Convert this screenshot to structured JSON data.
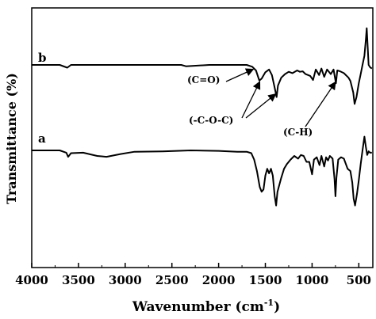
{
  "chart_data": {
    "type": "line",
    "xlabel": "Wavenumber (cm",
    "xlabel_sup": "-1",
    "xlabel_close": ")",
    "ylabel": "Transmittance (%)",
    "xlim": [
      4000,
      350
    ],
    "x_reversed": true,
    "xticks": [
      4000,
      3500,
      3000,
      2500,
      2000,
      1500,
      1000,
      500
    ],
    "yticks_labels": false,
    "series": [
      {
        "name": "b",
        "baseline": 0.0,
        "points": [
          [
            4000,
            0.0
          ],
          [
            3700,
            0.0
          ],
          [
            3620,
            -0.06
          ],
          [
            3580,
            0.0
          ],
          [
            3300,
            0.0
          ],
          [
            3000,
            0.0
          ],
          [
            2700,
            0.0
          ],
          [
            2400,
            0.0
          ],
          [
            2350,
            -0.03
          ],
          [
            2100,
            0.0
          ],
          [
            1900,
            0.0
          ],
          [
            1700,
            0.0
          ],
          [
            1640,
            -0.04
          ],
          [
            1600,
            -0.12
          ],
          [
            1565,
            -0.34
          ],
          [
            1540,
            -0.3
          ],
          [
            1500,
            -0.16
          ],
          [
            1460,
            -0.1
          ],
          [
            1430,
            -0.22
          ],
          [
            1400,
            -0.5
          ],
          [
            1380,
            -0.7
          ],
          [
            1365,
            -0.45
          ],
          [
            1330,
            -0.28
          ],
          [
            1290,
            -0.2
          ],
          [
            1250,
            -0.15
          ],
          [
            1210,
            -0.18
          ],
          [
            1160,
            -0.12
          ],
          [
            1130,
            -0.15
          ],
          [
            1100,
            -0.14
          ],
          [
            1070,
            -0.2
          ],
          [
            1020,
            -0.24
          ],
          [
            990,
            -0.33
          ],
          [
            960,
            -0.1
          ],
          [
            925,
            -0.22
          ],
          [
            900,
            -0.08
          ],
          [
            870,
            -0.26
          ],
          [
            840,
            -0.1
          ],
          [
            800,
            -0.2
          ],
          [
            770,
            -0.1
          ],
          [
            745,
            -0.4
          ],
          [
            730,
            -0.12
          ],
          [
            700,
            -0.14
          ],
          [
            660,
            -0.18
          ],
          [
            610,
            -0.28
          ],
          [
            590,
            -0.35
          ],
          [
            560,
            -0.6
          ],
          [
            545,
            -0.85
          ],
          [
            525,
            -0.7
          ],
          [
            500,
            -0.4
          ],
          [
            480,
            -0.2
          ],
          [
            460,
            0.0
          ],
          [
            440,
            0.2
          ],
          [
            425,
            0.55
          ],
          [
            415,
            0.8
          ],
          [
            405,
            0.4
          ],
          [
            395,
            0.0
          ],
          [
            380,
            -0.05
          ],
          [
            360,
            -0.08
          ]
        ]
      },
      {
        "name": "a",
        "baseline": 0.0,
        "points": [
          [
            4000,
            0.0
          ],
          [
            3700,
            0.0
          ],
          [
            3630,
            -0.05
          ],
          [
            3610,
            -0.14
          ],
          [
            3580,
            -0.06
          ],
          [
            3450,
            -0.05
          ],
          [
            3300,
            -0.12
          ],
          [
            3200,
            -0.14
          ],
          [
            3050,
            -0.08
          ],
          [
            2900,
            -0.03
          ],
          [
            2600,
            -0.02
          ],
          [
            2300,
            0.0
          ],
          [
            2000,
            -0.01
          ],
          [
            1800,
            -0.03
          ],
          [
            1700,
            -0.03
          ],
          [
            1650,
            -0.06
          ],
          [
            1620,
            -0.2
          ],
          [
            1590,
            -0.45
          ],
          [
            1560,
            -0.8
          ],
          [
            1540,
            -0.9
          ],
          [
            1520,
            -0.85
          ],
          [
            1500,
            -0.55
          ],
          [
            1480,
            -0.4
          ],
          [
            1460,
            -0.5
          ],
          [
            1440,
            -0.4
          ],
          [
            1420,
            -0.55
          ],
          [
            1400,
            -1.0
          ],
          [
            1385,
            -1.2
          ],
          [
            1370,
            -0.9
          ],
          [
            1330,
            -0.6
          ],
          [
            1300,
            -0.4
          ],
          [
            1270,
            -0.3
          ],
          [
            1230,
            -0.2
          ],
          [
            1190,
            -0.12
          ],
          [
            1150,
            -0.18
          ],
          [
            1120,
            -0.1
          ],
          [
            1090,
            -0.12
          ],
          [
            1060,
            -0.25
          ],
          [
            1030,
            -0.25
          ],
          [
            1000,
            -0.52
          ],
          [
            980,
            -0.2
          ],
          [
            950,
            -0.15
          ],
          [
            920,
            -0.32
          ],
          [
            900,
            -0.12
          ],
          [
            870,
            -0.35
          ],
          [
            850,
            -0.15
          ],
          [
            830,
            -0.22
          ],
          [
            810,
            -0.12
          ],
          [
            780,
            -0.18
          ],
          [
            760,
            -0.62
          ],
          [
            750,
            -1.0
          ],
          [
            740,
            -0.6
          ],
          [
            720,
            -0.2
          ],
          [
            690,
            -0.15
          ],
          [
            660,
            -0.18
          ],
          [
            620,
            -0.4
          ],
          [
            590,
            -0.45
          ],
          [
            570,
            -0.7
          ],
          [
            555,
            -1.05
          ],
          [
            540,
            -1.2
          ],
          [
            520,
            -0.95
          ],
          [
            500,
            -0.65
          ],
          [
            480,
            -0.3
          ],
          [
            460,
            0.0
          ],
          [
            440,
            0.3
          ],
          [
            425,
            0.08
          ],
          [
            410,
            -0.1
          ],
          [
            395,
            -0.02
          ],
          [
            380,
            -0.05
          ],
          [
            360,
            -0.05
          ]
        ]
      }
    ],
    "annotations": [
      {
        "text": "(C=O)",
        "arrow_to": [
          1630,
          "b"
        ]
      },
      {
        "text": "(-C-O-C)",
        "arrow_to": [
          1560,
          "b"
        ]
      },
      {
        "text": "(-C-O-C)",
        "arrow_to": [
          1390,
          "b"
        ]
      },
      {
        "text": "(C-H)",
        "arrow_to": [
          750,
          "b"
        ]
      }
    ]
  }
}
